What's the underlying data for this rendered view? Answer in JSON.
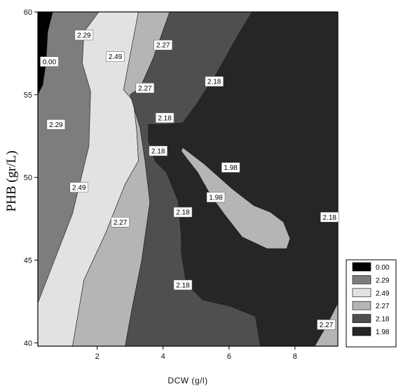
{
  "chart_data": {
    "type": "contour",
    "title": "",
    "xlabel": "DCW (g/l)",
    "ylabel": "PHB (gr/L)",
    "xlim": [
      0.2,
      9.3
    ],
    "ylim": [
      39.8,
      60
    ],
    "x_ticks": [
      2,
      4,
      6,
      8
    ],
    "y_ticks": [
      40,
      45,
      50,
      55,
      60
    ],
    "legend_position": "bottom-right",
    "legend": [
      {
        "label": "0.00",
        "color": "#000000"
      },
      {
        "label": "2.29",
        "color": "#7d7d7d"
      },
      {
        "label": "2.49",
        "color": "#e2e2e2"
      },
      {
        "label": "2.27",
        "color": "#b5b5b5"
      },
      {
        "label": "2.18",
        "color": "#4f4f4f"
      },
      {
        "label": "1.98",
        "color": "#262626"
      }
    ],
    "regions": [
      {
        "level": "2.29",
        "color": "#7d7d7d",
        "polygon": [
          [
            0.2,
            39.8
          ],
          [
            9.3,
            39.8
          ],
          [
            9.3,
            60
          ],
          [
            0.2,
            60
          ]
        ]
      },
      {
        "level": "2.49",
        "color": "#e2e2e2",
        "polygon": [
          [
            0.2,
            42.4
          ],
          [
            1.25,
            47.8
          ],
          [
            1.75,
            51.9
          ],
          [
            1.8,
            55.2
          ],
          [
            1.55,
            56.9
          ],
          [
            1.6,
            58.8
          ],
          [
            2.05,
            60
          ],
          [
            3.25,
            60
          ],
          [
            2.8,
            55.3
          ],
          [
            3.1,
            54.6
          ],
          [
            3.2,
            52.8
          ],
          [
            3.25,
            51.0
          ],
          [
            2.85,
            49.6
          ],
          [
            2.25,
            46.6
          ],
          [
            1.6,
            43.8
          ],
          [
            1.25,
            39.8
          ],
          [
            0.2,
            39.8
          ]
        ]
      },
      {
        "level": "2.27",
        "color": "#b5b5b5",
        "polygon": [
          [
            1.25,
            39.8
          ],
          [
            1.6,
            43.8
          ],
          [
            2.25,
            46.6
          ],
          [
            2.85,
            49.6
          ],
          [
            3.25,
            51.0
          ],
          [
            3.2,
            52.8
          ],
          [
            3.1,
            54.6
          ],
          [
            2.8,
            55.3
          ],
          [
            3.25,
            60
          ],
          [
            4.2,
            60
          ],
          [
            3.7,
            57.2
          ],
          [
            3.3,
            55.4
          ],
          [
            3.0,
            55.0
          ],
          [
            3.3,
            53.0
          ],
          [
            3.45,
            51.0
          ],
          [
            3.6,
            48.5
          ],
          [
            3.35,
            45.0
          ],
          [
            3.05,
            42.0
          ],
          [
            2.85,
            39.8
          ]
        ]
      },
      {
        "level": "2.18",
        "color": "#4f4f4f",
        "polygon": [
          [
            2.85,
            39.8
          ],
          [
            3.05,
            42.0
          ],
          [
            3.35,
            45.0
          ],
          [
            3.6,
            48.5
          ],
          [
            3.45,
            51.0
          ],
          [
            3.3,
            53.0
          ],
          [
            3.0,
            55.0
          ],
          [
            3.3,
            55.4
          ],
          [
            3.7,
            57.2
          ],
          [
            4.2,
            60
          ],
          [
            9.3,
            60
          ],
          [
            9.3,
            39.8
          ]
        ]
      },
      {
        "level": "1.98",
        "color": "#262626",
        "polygon": [
          [
            6.7,
            60
          ],
          [
            9.3,
            60
          ],
          [
            9.3,
            40.5
          ],
          [
            8.9,
            39.8
          ],
          [
            6.95,
            39.8
          ],
          [
            6.8,
            41.6
          ],
          [
            6.05,
            42.2
          ],
          [
            5.2,
            42.6
          ],
          [
            4.7,
            43.6
          ],
          [
            4.55,
            45.5
          ],
          [
            4.55,
            46.5
          ],
          [
            4.45,
            48.6
          ],
          [
            4.1,
            50.3
          ],
          [
            3.75,
            51.0
          ],
          [
            3.55,
            52.2
          ],
          [
            3.55,
            53.2
          ],
          [
            4.1,
            53.2
          ],
          [
            4.6,
            53.3
          ],
          [
            5.0,
            54.4
          ],
          [
            5.6,
            56.2
          ],
          [
            6.3,
            58.7
          ]
        ]
      },
      {
        "level": "1.98",
        "color": "#b5b5b5",
        "polygon": [
          [
            4.6,
            51.8
          ],
          [
            5.25,
            50.8
          ],
          [
            6.1,
            49.3
          ],
          [
            6.75,
            48.3
          ],
          [
            7.25,
            47.9
          ],
          [
            7.65,
            47.3
          ],
          [
            7.85,
            46.3
          ],
          [
            7.75,
            45.7
          ],
          [
            7.15,
            45.7
          ],
          [
            6.4,
            46.4
          ],
          [
            5.85,
            47.8
          ],
          [
            5.45,
            48.9
          ],
          [
            5.05,
            50.3
          ],
          [
            4.7,
            51.2
          ],
          [
            4.55,
            51.6
          ]
        ]
      },
      {
        "level": "2.27",
        "color": "#b5b5b5",
        "polygon": [
          [
            8.6,
            39.8
          ],
          [
            9.3,
            39.8
          ],
          [
            9.3,
            42.4
          ],
          [
            9.0,
            41.2
          ]
        ]
      },
      {
        "level": "0.00",
        "color": "#000000",
        "polygon": [
          [
            0.2,
            60
          ],
          [
            0.65,
            60
          ],
          [
            0.5,
            58.8
          ],
          [
            0.45,
            57.0
          ],
          [
            0.35,
            55.6
          ],
          [
            0.2,
            55.0
          ]
        ]
      }
    ],
    "contour_labels": [
      {
        "text": "2.29",
        "x": 1.6,
        "y": 58.6
      },
      {
        "text": "0.00",
        "x": 0.55,
        "y": 57.0
      },
      {
        "text": "2.49",
        "x": 2.55,
        "y": 57.3
      },
      {
        "text": "2.27",
        "x": 4.0,
        "y": 58.0
      },
      {
        "text": "2.18",
        "x": 5.55,
        "y": 55.8
      },
      {
        "text": "2.27",
        "x": 3.45,
        "y": 55.4
      },
      {
        "text": "2.29",
        "x": 0.75,
        "y": 53.2
      },
      {
        "text": "2.18",
        "x": 4.05,
        "y": 53.6
      },
      {
        "text": "2.18",
        "x": 3.85,
        "y": 51.6
      },
      {
        "text": "1.98",
        "x": 6.05,
        "y": 50.6
      },
      {
        "text": "2.49",
        "x": 1.45,
        "y": 49.4
      },
      {
        "text": "1.98",
        "x": 5.6,
        "y": 48.8
      },
      {
        "text": "2.18",
        "x": 4.6,
        "y": 47.9
      },
      {
        "text": "2.27",
        "x": 2.7,
        "y": 47.3
      },
      {
        "text": "2.18",
        "x": 9.05,
        "y": 47.6
      },
      {
        "text": "2.18",
        "x": 4.6,
        "y": 43.5
      },
      {
        "text": "2.27",
        "x": 8.95,
        "y": 41.1
      }
    ]
  }
}
